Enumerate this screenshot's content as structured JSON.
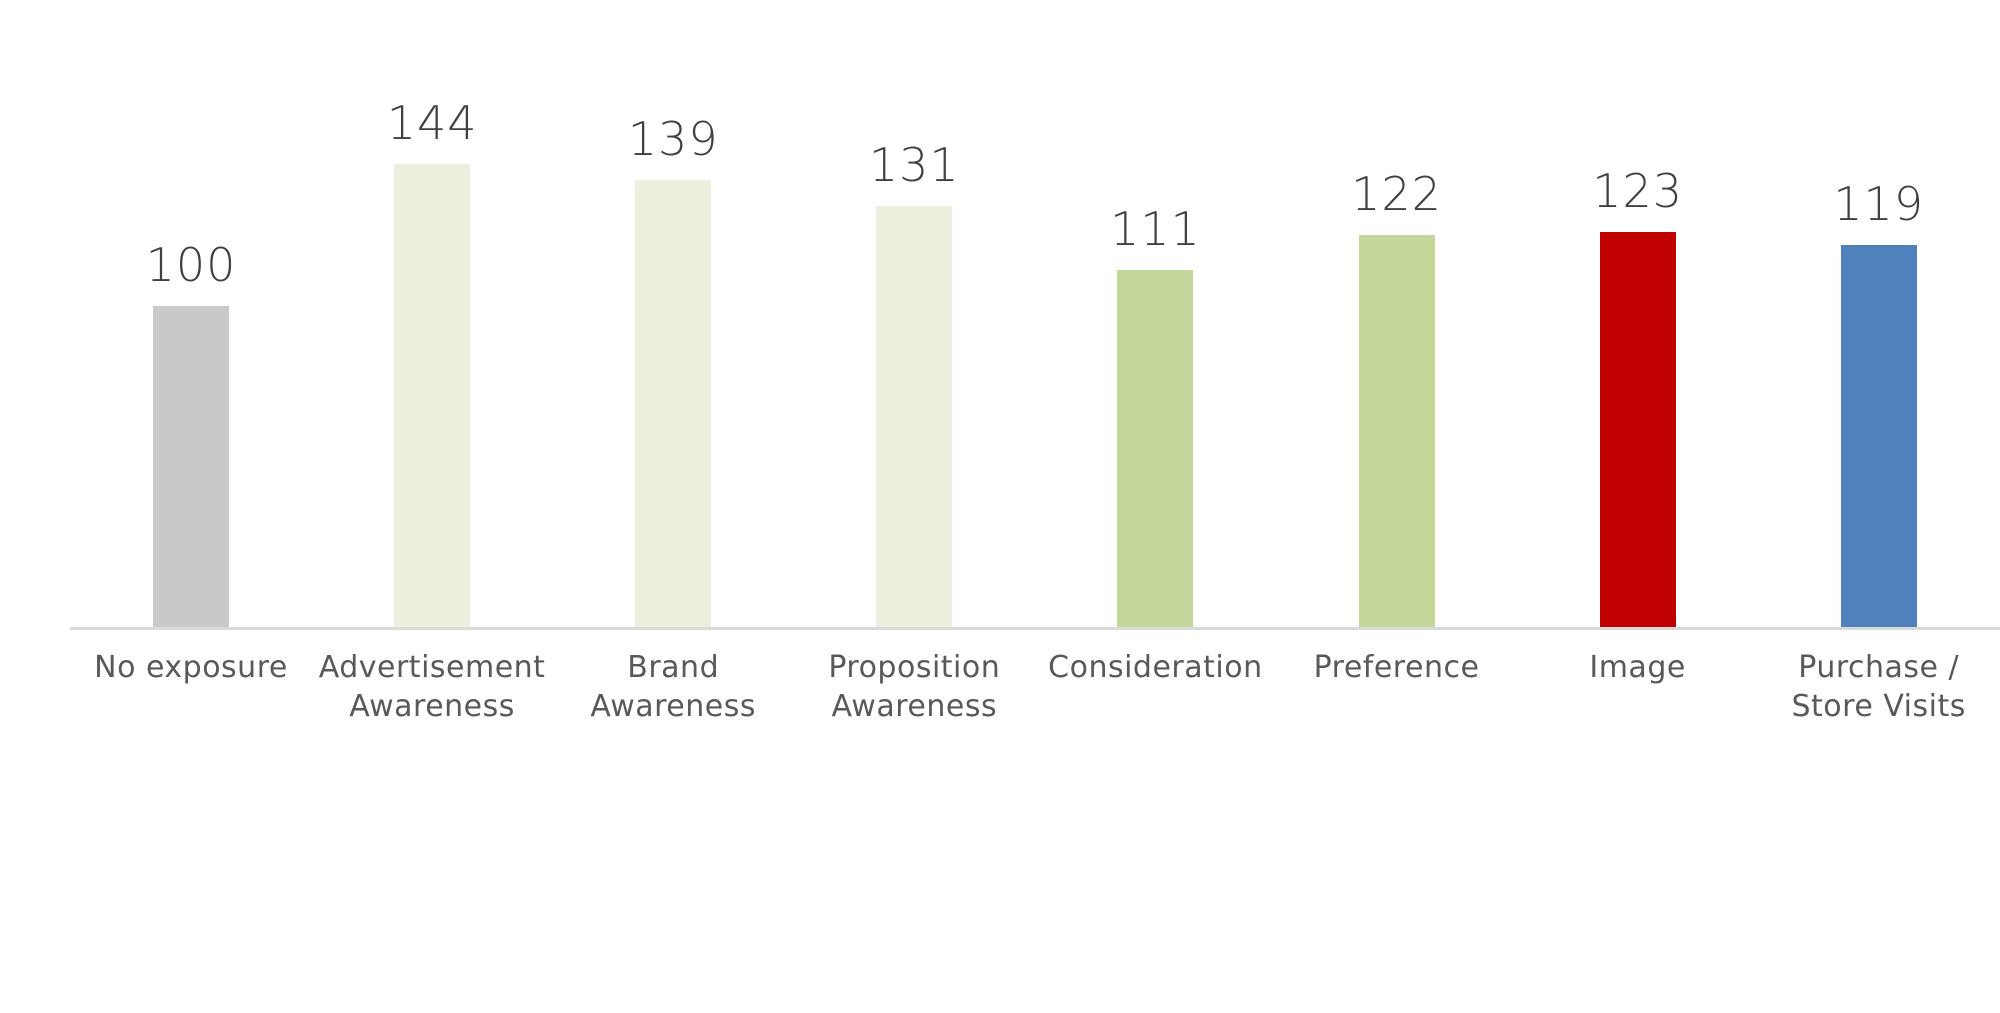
{
  "chart_data": {
    "type": "bar",
    "title": "",
    "xlabel": "",
    "ylabel": "",
    "categories": [
      "No exposure",
      "Advertisement Awareness",
      "Brand Awareness",
      "Proposition Awareness",
      "Consideration",
      "Preference",
      "Image",
      "Purchase / Store Visits"
    ],
    "values": [
      100,
      144,
      139,
      131,
      111,
      122,
      123,
      119
    ],
    "colors": [
      "#c9c9c9",
      "#ebf1de",
      "#ebf1de",
      "#ebf1de",
      "#c4d79b",
      "#c4d79b",
      "#c00000",
      "#4f81bd"
    ],
    "ylim": [
      0,
      160
    ],
    "grid": false,
    "legend": null,
    "data_labels": true
  },
  "bars": [
    {
      "label_line1": "No exposure",
      "label_line2": "",
      "value": "100"
    },
    {
      "label_line1": "Advertisement",
      "label_line2": "Awareness",
      "value": "144"
    },
    {
      "label_line1": "Brand",
      "label_line2": "Awareness",
      "value": "139"
    },
    {
      "label_line1": "Proposition",
      "label_line2": "Awareness",
      "value": "131"
    },
    {
      "label_line1": "Consideration",
      "label_line2": "",
      "value": "111"
    },
    {
      "label_line1": "Preference",
      "label_line2": "",
      "value": "122"
    },
    {
      "label_line1": "Image",
      "label_line2": "",
      "value": "123"
    },
    {
      "label_line1": "Purchase /",
      "label_line2": "Store Visits",
      "value": "119"
    }
  ]
}
